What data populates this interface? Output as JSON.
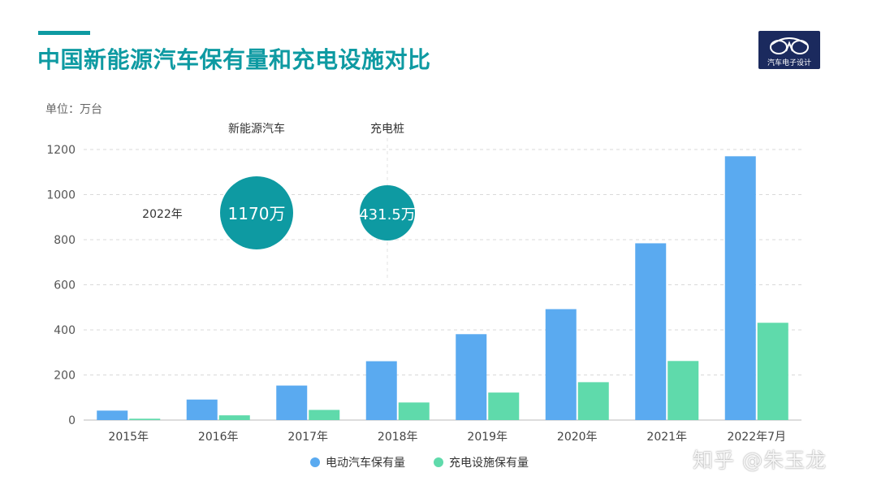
{
  "header": {
    "title": "中国新能源汽车保有量和充电设施对比",
    "logo_text": "汽车电子设计"
  },
  "unit_label": "单位：万台",
  "callouts": {
    "year": "2022年",
    "ev_label": "新能源汽车",
    "ev_value": "1170万",
    "charger_label": "充电桩",
    "charger_value": "431.5万"
  },
  "watermark": "知乎 @朱玉龙",
  "colors": {
    "accent": "#0e9aa2",
    "title": "#0e9aa2",
    "ev_series": "#5aaaf0",
    "charger_series": "#5fdaab",
    "bubble": "#0e9aa2",
    "logo_bg": "#1b2a5e"
  },
  "chart_data": {
    "type": "bar",
    "categories": [
      "2015年",
      "2016年",
      "2017年",
      "2018年",
      "2019年",
      "2020年",
      "2021年",
      "2022年7月"
    ],
    "series": [
      {
        "name": "电动汽车保有量",
        "values": [
          42,
          91,
          153,
          261,
          381,
          492,
          784,
          1170
        ]
      },
      {
        "name": "充电设施保有量",
        "values": [
          6,
          21,
          45,
          78,
          122,
          168,
          262,
          431.5
        ]
      }
    ],
    "ylim": [
      0,
      1200
    ],
    "yticks": [
      "0",
      "200",
      "400",
      "600",
      "800",
      "1000",
      "1200"
    ],
    "grid": true,
    "legend_position": "bottom"
  }
}
